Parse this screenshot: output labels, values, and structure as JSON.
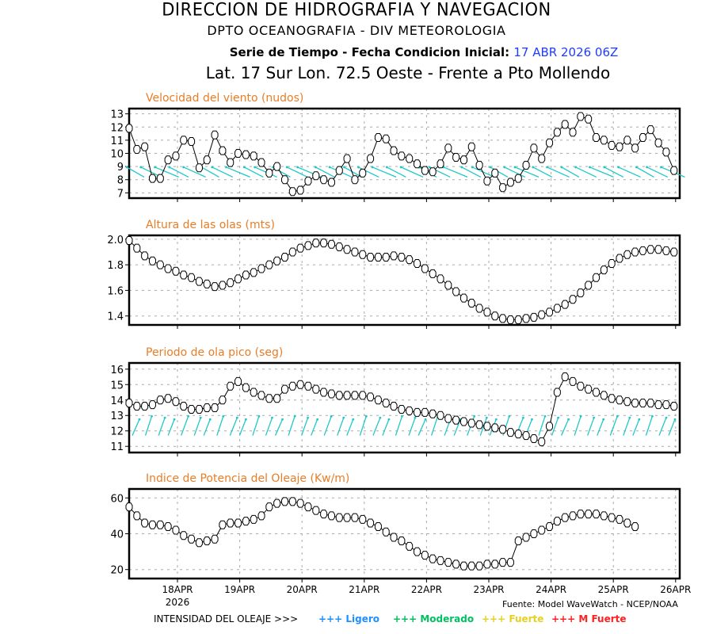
{
  "header": {
    "line1": "DIRECCION DE HIDROGRAFIA Y NAVEGACION",
    "line2": "DPTO OCEANOGRAFIA - DIV METEOROLOGIA",
    "line3_prefix": "Serie de Tiempo - Fecha Condicion Inicial:",
    "line3_date": "17 ABR 2026 06Z",
    "line4": "Lat. 17 Sur  Lon. 72.5 Oeste - Frente a Pto Mollendo"
  },
  "colors": {
    "title": "#e87e28",
    "accent_date": "#1e3cff",
    "arrows": "#1ec8c8",
    "ligero": "#1e90ff",
    "moderado": "#00c060",
    "fuerte": "#e8d020",
    "m_fuerte": "#ff2020"
  },
  "x_axis": {
    "ticks": [
      "18APR",
      "19APR",
      "20APR",
      "21APR",
      "22APR",
      "23APR",
      "24APR",
      "25APR",
      "26APR"
    ],
    "year_label": "2026",
    "start": "17APR 06Z",
    "step_hours": 3
  },
  "footer": {
    "source": "Fuente: Model WaveWatch - NCEP/NOAA",
    "intensity_label": "INTENSIDAD DEL OLEAJE >>>",
    "legend": [
      {
        "label": "+++ Ligero",
        "key": "ligero"
      },
      {
        "label": "+++ Moderado",
        "key": "moderado"
      },
      {
        "label": "+++ Fuerte",
        "key": "fuerte"
      },
      {
        "label": "+++ M Fuerte",
        "key": "m_fuerte"
      }
    ]
  },
  "chart_data": [
    {
      "type": "line",
      "title": "Velocidad del viento (nudos)",
      "ylim": [
        6.6,
        13.4
      ],
      "yticks": [
        7,
        8,
        9,
        10,
        11,
        12,
        13
      ],
      "grid": true,
      "direction_arrows": "wind from SE (arrows pointing NW)",
      "values": [
        11.9,
        10.3,
        10.5,
        8.1,
        8.1,
        9.5,
        9.8,
        11.0,
        10.9,
        8.9,
        9.5,
        11.4,
        10.2,
        9.3,
        10.0,
        9.9,
        9.8,
        9.3,
        8.5,
        9.0,
        8.0,
        7.1,
        7.2,
        7.9,
        8.3,
        8.0,
        7.8,
        8.7,
        9.6,
        8.0,
        8.5,
        9.6,
        11.2,
        11.1,
        10.2,
        9.8,
        9.6,
        9.2,
        8.7,
        8.6,
        9.2,
        10.4,
        9.7,
        9.5,
        10.5,
        9.1,
        7.9,
        8.5,
        7.4,
        7.8,
        8.1,
        9.1,
        10.4,
        9.6,
        10.8,
        11.6,
        12.2,
        11.6,
        12.8,
        12.6,
        11.2,
        11.0,
        10.6,
        10.5,
        11.0,
        10.4,
        11.2,
        11.8,
        10.8,
        10.1,
        8.7
      ],
      "arrow_count": 38
    },
    {
      "type": "line",
      "title": "Altura de las olas (mts)",
      "ylim": [
        1.33,
        2.03
      ],
      "yticks": [
        "1.4",
        "1.6",
        "1.8",
        "2.0"
      ],
      "grid": true,
      "values": [
        1.99,
        1.93,
        1.87,
        1.83,
        1.8,
        1.77,
        1.75,
        1.72,
        1.7,
        1.67,
        1.65,
        1.63,
        1.64,
        1.66,
        1.69,
        1.72,
        1.74,
        1.77,
        1.8,
        1.83,
        1.86,
        1.9,
        1.93,
        1.95,
        1.97,
        1.97,
        1.96,
        1.94,
        1.92,
        1.9,
        1.88,
        1.86,
        1.86,
        1.86,
        1.87,
        1.86,
        1.84,
        1.81,
        1.77,
        1.73,
        1.69,
        1.64,
        1.59,
        1.54,
        1.5,
        1.46,
        1.43,
        1.4,
        1.38,
        1.37,
        1.37,
        1.38,
        1.39,
        1.41,
        1.43,
        1.46,
        1.49,
        1.53,
        1.58,
        1.64,
        1.7,
        1.76,
        1.81,
        1.85,
        1.88,
        1.9,
        1.91,
        1.92,
        1.92,
        1.91,
        1.9,
        1.88,
        1.85,
        1.82
      ]
    },
    {
      "type": "line",
      "title": "Periodo de ola pico (seg)",
      "ylim": [
        10.6,
        16.4
      ],
      "yticks": [
        11,
        12,
        13,
        14,
        15,
        16
      ],
      "grid": true,
      "direction_arrows": "swell from SSW (arrows pointing NNE)",
      "values": [
        13.8,
        13.6,
        13.6,
        13.7,
        14.0,
        14.1,
        13.9,
        13.6,
        13.4,
        13.4,
        13.5,
        13.5,
        14.0,
        14.9,
        15.2,
        14.8,
        14.5,
        14.3,
        14.1,
        14.1,
        14.7,
        14.9,
        15.0,
        14.9,
        14.7,
        14.5,
        14.4,
        14.3,
        14.3,
        14.3,
        14.3,
        14.2,
        14.0,
        13.8,
        13.6,
        13.4,
        13.3,
        13.2,
        13.2,
        13.1,
        13.0,
        12.8,
        12.7,
        12.6,
        12.5,
        12.4,
        12.3,
        12.2,
        12.1,
        11.9,
        11.8,
        11.7,
        11.5,
        11.3,
        12.3,
        14.5,
        15.5,
        15.2,
        14.9,
        14.7,
        14.5,
        14.3,
        14.1,
        14.0,
        13.9,
        13.8,
        13.8,
        13.8,
        13.7,
        13.7,
        13.6,
        13.5
      ],
      "arrow_count": 46
    },
    {
      "type": "line",
      "title": "Indice de Potencia del Oleaje (Kw/m)",
      "ylim": [
        15,
        65
      ],
      "yticks": [
        20,
        40,
        60
      ],
      "grid": true,
      "values": [
        55,
        50,
        46,
        45,
        45,
        44,
        42,
        39,
        37,
        35,
        36,
        37,
        45,
        46,
        46,
        47,
        48,
        50,
        55,
        57,
        58,
        58,
        57,
        55,
        53,
        51,
        50,
        49,
        49,
        49,
        48,
        46,
        44,
        41,
        38,
        36,
        33,
        30,
        28,
        26,
        25,
        24,
        23,
        22,
        22,
        22,
        23,
        23,
        24,
        24,
        36,
        38,
        40,
        42,
        44,
        47,
        49,
        50,
        51,
        51,
        51,
        50,
        49,
        48,
        46,
        44
      ]
    }
  ]
}
